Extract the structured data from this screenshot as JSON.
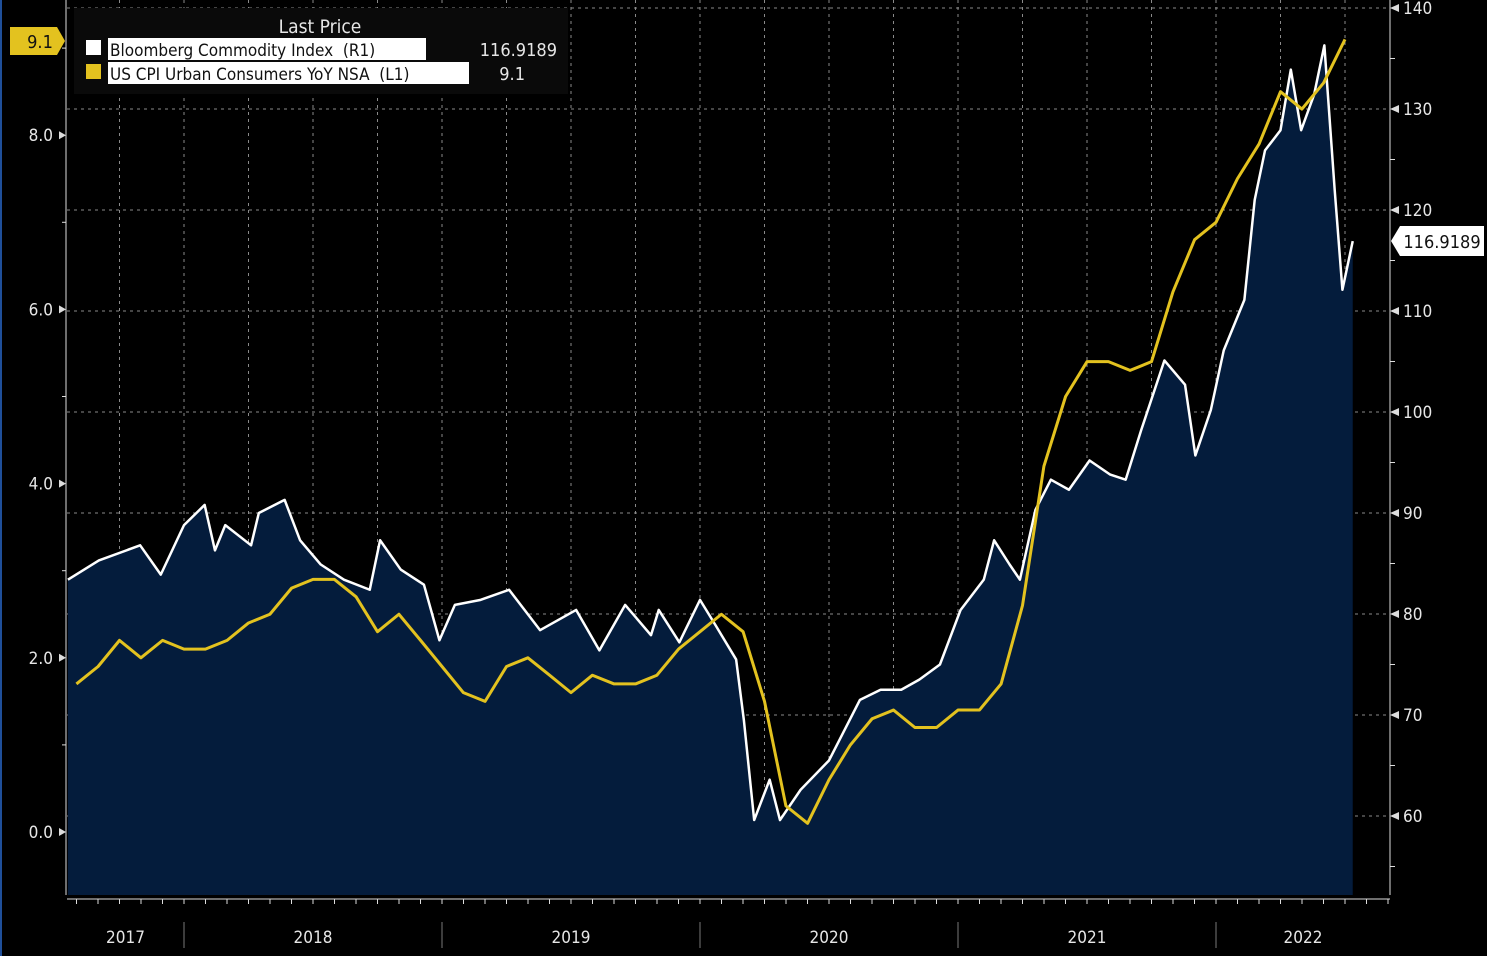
{
  "colors": {
    "background": "#000000",
    "area": "#041c3c",
    "commodity": "#ffffff",
    "cpi": "#e3c21f",
    "grid": "#8a8a8a"
  },
  "legend": {
    "header": "Last Price",
    "items": [
      {
        "label": "Bloomberg Commodity Index  (R1)",
        "value": "116.9189",
        "swatch": "#ffffff"
      },
      {
        "label": "US CPI Urban Consumers YoY NSA  (L1)",
        "value": "9.1",
        "swatch": "#e3c21f"
      }
    ]
  },
  "badges": {
    "left_last": "9.1",
    "right_last": "116.9189"
  },
  "chart_data": {
    "type": "line",
    "title": "",
    "xlabel": "",
    "x_range": [
      2017.55,
      2022.67
    ],
    "x_ticks": [
      "2017",
      "2018",
      "2019",
      "2020",
      "2021",
      "2022"
    ],
    "left_axis": {
      "ticks": [
        "0.0",
        "2.0",
        "4.0",
        "6.0",
        "8.0"
      ],
      "range": [
        -0.75,
        9.55
      ]
    },
    "right_axis": {
      "ticks": [
        "60",
        "70",
        "80",
        "90",
        "100",
        "110",
        "120",
        "130",
        "140"
      ],
      "range": [
        52,
        140.8
      ]
    },
    "grid": true,
    "legend_position": "top-left",
    "series": [
      {
        "name": "US CPI Urban Consumers YoY NSA (L1)",
        "axis": "left",
        "x": [
          2017.583,
          2017.667,
          2017.75,
          2017.833,
          2017.917,
          2018.0,
          2018.083,
          2018.167,
          2018.25,
          2018.333,
          2018.417,
          2018.5,
          2018.583,
          2018.667,
          2018.75,
          2018.833,
          2018.917,
          2019.0,
          2019.083,
          2019.167,
          2019.25,
          2019.333,
          2019.417,
          2019.5,
          2019.583,
          2019.667,
          2019.75,
          2019.833,
          2019.917,
          2020.0,
          2020.083,
          2020.167,
          2020.25,
          2020.333,
          2020.417,
          2020.5,
          2020.583,
          2020.667,
          2020.75,
          2020.833,
          2020.917,
          2021.0,
          2021.083,
          2021.167,
          2021.25,
          2021.333,
          2021.417,
          2021.5,
          2021.583,
          2021.667,
          2021.75,
          2021.833,
          2021.917,
          2022.0,
          2022.083,
          2022.167,
          2022.25,
          2022.333,
          2022.417,
          2022.5
        ],
        "values": [
          1.7,
          1.9,
          2.2,
          2.0,
          2.2,
          2.1,
          2.1,
          2.2,
          2.4,
          2.5,
          2.8,
          2.9,
          2.9,
          2.7,
          2.3,
          2.5,
          2.2,
          1.9,
          1.6,
          1.5,
          1.9,
          2.0,
          1.8,
          1.6,
          1.8,
          1.7,
          1.7,
          1.8,
          2.1,
          2.3,
          2.5,
          2.3,
          1.5,
          0.3,
          0.1,
          0.6,
          1.0,
          1.3,
          1.4,
          1.2,
          1.2,
          1.4,
          1.4,
          1.7,
          2.6,
          4.2,
          5.0,
          5.4,
          5.4,
          5.3,
          5.4,
          6.2,
          6.8,
          7.0,
          7.5,
          7.9,
          8.5,
          8.3,
          8.6,
          9.1
        ]
      },
      {
        "name": "Bloomberg Commodity Index (R1)",
        "axis": "right",
        "x": [
          2017.55,
          2017.67,
          2017.83,
          2017.91,
          2018.0,
          2018.08,
          2018.12,
          2018.16,
          2018.26,
          2018.29,
          2018.39,
          2018.45,
          2018.53,
          2018.62,
          2018.72,
          2018.76,
          2018.84,
          2018.93,
          2018.99,
          2019.05,
          2019.15,
          2019.26,
          2019.38,
          2019.52,
          2019.61,
          2019.71,
          2019.81,
          2019.84,
          2019.92,
          2020.0,
          2020.06,
          2020.14,
          2020.17,
          2020.21,
          2020.27,
          2020.31,
          2020.39,
          2020.5,
          2020.62,
          2020.7,
          2020.78,
          2020.85,
          2020.93,
          2021.01,
          2021.1,
          2021.14,
          2021.2,
          2021.24,
          2021.3,
          2021.36,
          2021.43,
          2021.51,
          2021.59,
          2021.65,
          2021.71,
          2021.8,
          2021.88,
          2021.92,
          2021.98,
          2022.03,
          2022.11,
          2022.15,
          2022.19,
          2022.25,
          2022.29,
          2022.33,
          2022.38,
          2022.42,
          2022.46,
          2022.49,
          2022.53
        ],
        "values": [
          83.4,
          85.3,
          86.8,
          83.9,
          88.8,
          90.8,
          86.3,
          88.8,
          86.8,
          90.0,
          91.3,
          87.3,
          84.9,
          83.4,
          82.4,
          87.3,
          84.4,
          82.9,
          77.4,
          80.9,
          81.4,
          82.4,
          78.4,
          80.4,
          76.4,
          80.9,
          77.9,
          80.4,
          77.2,
          81.4,
          78.9,
          75.5,
          69.5,
          59.6,
          63.6,
          59.6,
          62.6,
          65.5,
          71.5,
          72.5,
          72.5,
          73.5,
          75.0,
          80.4,
          83.4,
          87.3,
          84.9,
          83.4,
          90.3,
          93.3,
          92.3,
          95.2,
          93.8,
          93.3,
          98.2,
          105.1,
          102.7,
          95.7,
          100.2,
          106.1,
          111.1,
          121.0,
          125.9,
          127.9,
          133.9,
          127.9,
          131.4,
          136.3,
          122.0,
          112.1,
          116.9189
        ]
      }
    ]
  }
}
